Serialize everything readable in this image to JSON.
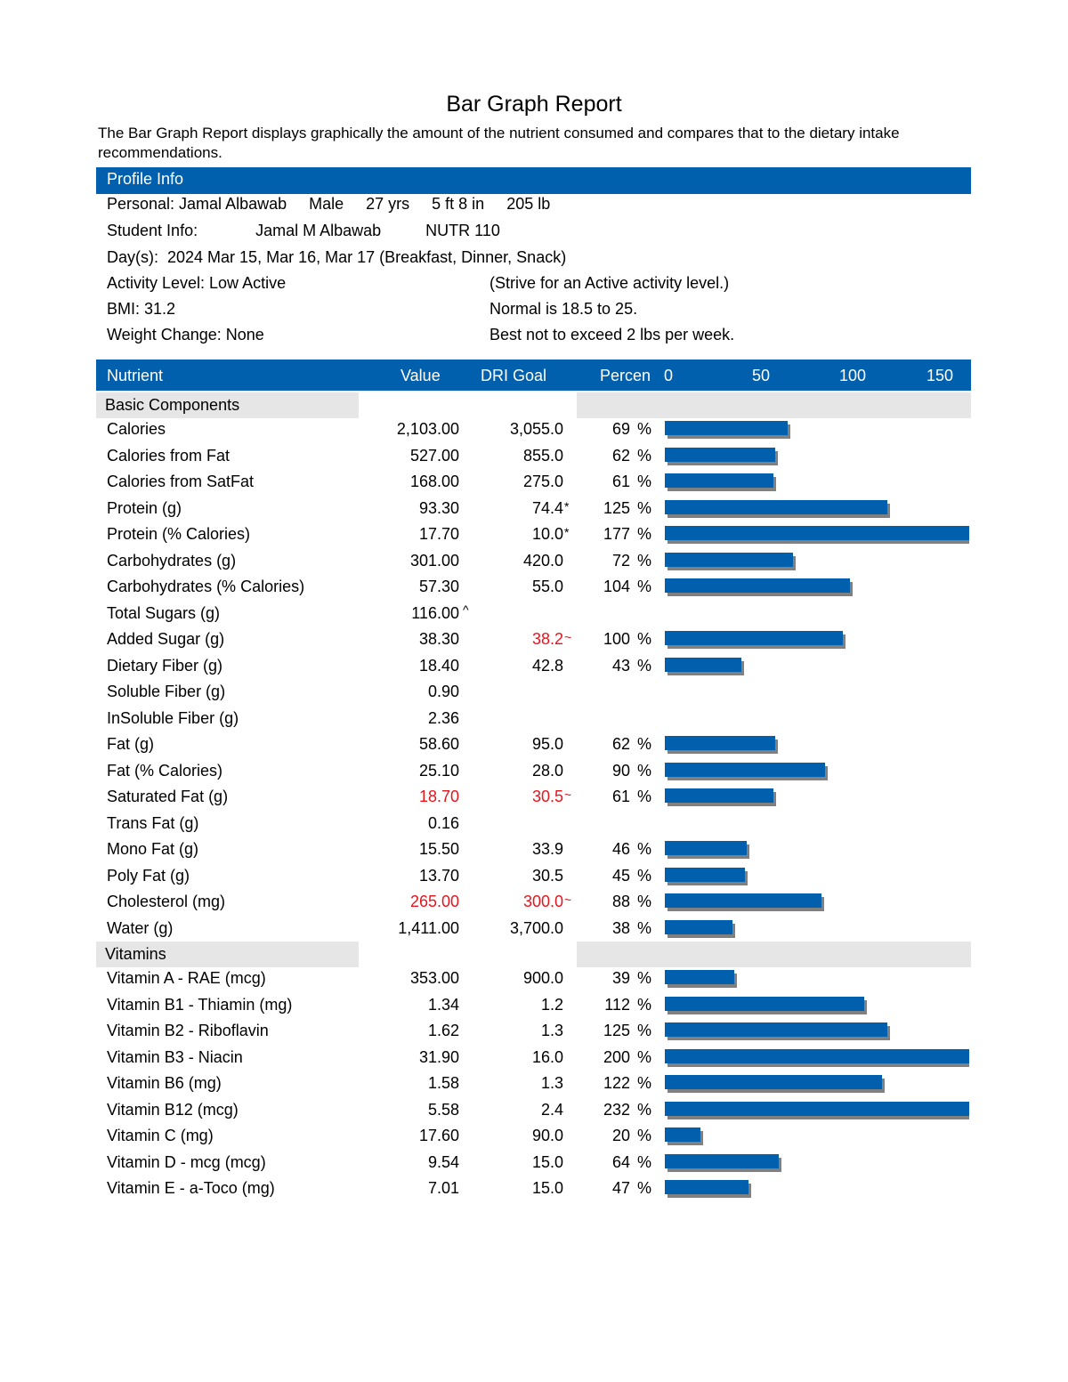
{
  "title": "Bar Graph Report",
  "description": "The Bar Graph Report displays graphically the amount of the nutrient consumed and compares that to the dietary intake recommendations.",
  "profile": {
    "header": "Profile Info",
    "personal": "Personal: Jamal Albawab     Male     27 yrs     5 ft 8 in     205 lb",
    "student": "Student Info:             Jamal M Albawab          NUTR 110",
    "days": "Day(s):  2024 Mar 15, Mar 16, Mar 17 (Breakfast, Dinner, Snack)",
    "activity": "Activity Level: Low Active",
    "activity_note": "(Strive for an Active activity level.)",
    "bmi": "BMI: 31.2",
    "bmi_note": "Normal is 18.5 to 25.",
    "weight": "Weight Change: None",
    "weight_note": "Best not to exceed 2 lbs per week."
  },
  "table_header": {
    "nutrient": "Nutrient",
    "value": "Value",
    "goal": "DRI Goal",
    "percent": "Percen",
    "ticks": [
      "0",
      "50",
      "100",
      "150"
    ]
  },
  "chart_data": {
    "type": "bar",
    "axis_ticks": [
      0,
      50,
      100,
      150
    ],
    "xlim": [
      0,
      170
    ],
    "colors": {
      "bar": "#0060AD",
      "shadow": "#808080",
      "flag": "#e8141b",
      "header": "#0060AD"
    },
    "groups": [
      {
        "name": "Basic Components",
        "rows": [
          {
            "name": "Calories",
            "value": "2,103.00",
            "goal": "3,055.0",
            "pct": "69",
            "pct_num": 69
          },
          {
            "name": "Calories from Fat",
            "value": "527.00",
            "goal": "855.0",
            "pct": "62",
            "pct_num": 62
          },
          {
            "name": "Calories from SatFat",
            "value": "168.00",
            "goal": "275.0",
            "pct": "61",
            "pct_num": 61
          },
          {
            "name": "Protein (g)",
            "value": "93.30",
            "goal": "74.4",
            "goal_flag": "*",
            "pct": "125",
            "pct_num": 125
          },
          {
            "name": "Protein (% Calories)",
            "value": "17.70",
            "goal": "10.0",
            "goal_flag": "*",
            "pct": "177",
            "pct_num": 177
          },
          {
            "name": "Carbohydrates (g)",
            "value": "301.00",
            "goal": "420.0",
            "pct": "72",
            "pct_num": 72
          },
          {
            "name": "Carbohydrates (% Calories)",
            "value": "57.30",
            "goal": "55.0",
            "pct": "104",
            "pct_num": 104
          },
          {
            "name": "Total Sugars (g)",
            "value": "116.00",
            "value_flag": "^",
            "goal": "",
            "pct": ""
          },
          {
            "name": "Added Sugar (g)",
            "value": "38.30",
            "goal": "38.2",
            "goal_flag": "~",
            "goal_red": true,
            "pct": "100",
            "pct_num": 100
          },
          {
            "name": "Dietary Fiber (g)",
            "value": "18.40",
            "goal": "42.8",
            "pct": "43",
            "pct_num": 43
          },
          {
            "name": "Soluble Fiber (g)",
            "value": "0.90",
            "goal": "",
            "pct": ""
          },
          {
            "name": "InSoluble Fiber (g)",
            "value": "2.36",
            "goal": "",
            "pct": ""
          },
          {
            "name": "Fat (g)",
            "value": "58.60",
            "goal": "95.0",
            "pct": "62",
            "pct_num": 62
          },
          {
            "name": "Fat (% Calories)",
            "value": "25.10",
            "goal": "28.0",
            "pct": "90",
            "pct_num": 90
          },
          {
            "name": "Saturated Fat (g)",
            "value": "18.70",
            "value_red": true,
            "goal": "30.5",
            "goal_flag": "~",
            "goal_red": true,
            "pct": "61",
            "pct_num": 61
          },
          {
            "name": "Trans Fat (g)",
            "value": "0.16",
            "goal": "",
            "pct": ""
          },
          {
            "name": "Mono Fat (g)",
            "value": "15.50",
            "goal": "33.9",
            "pct": "46",
            "pct_num": 46
          },
          {
            "name": "Poly Fat (g)",
            "value": "13.70",
            "goal": "30.5",
            "pct": "45",
            "pct_num": 45
          },
          {
            "name": "Cholesterol (mg)",
            "value": "265.00",
            "value_red": true,
            "goal": "300.0",
            "goal_flag": "~",
            "goal_red": true,
            "pct": "88",
            "pct_num": 88
          },
          {
            "name": "Water (g)",
            "value": "1,411.00",
            "goal": "3,700.0",
            "pct": "38",
            "pct_num": 38
          }
        ]
      },
      {
        "name": "Vitamins",
        "rows": [
          {
            "name": "Vitamin A - RAE (mcg)",
            "value": "353.00",
            "goal": "900.0",
            "pct": "39",
            "pct_num": 39
          },
          {
            "name": "Vitamin B1 - Thiamin (mg)",
            "value": "1.34",
            "goal": "1.2",
            "pct": "112",
            "pct_num": 112
          },
          {
            "name": "Vitamin B2 - Riboflavin",
            "value": "1.62",
            "goal": "1.3",
            "pct": "125",
            "pct_num": 125
          },
          {
            "name": "Vitamin B3 - Niacin",
            "value": "31.90",
            "goal": "16.0",
            "pct": "200",
            "pct_num": 200
          },
          {
            "name": "Vitamin B6 (mg)",
            "value": "1.58",
            "goal": "1.3",
            "pct": "122",
            "pct_num": 122
          },
          {
            "name": "Vitamin B12 (mcg)",
            "value": "5.58",
            "goal": "2.4",
            "pct": "232",
            "pct_num": 232
          },
          {
            "name": "Vitamin C (mg)",
            "value": "17.60",
            "goal": "90.0",
            "pct": "20",
            "pct_num": 20
          },
          {
            "name": "Vitamin D - mcg (mcg)",
            "value": "9.54",
            "goal": "15.0",
            "pct": "64",
            "pct_num": 64
          },
          {
            "name": "Vitamin E - a-Toco (mg)",
            "value": "7.01",
            "goal": "15.0",
            "pct": "47",
            "pct_num": 47
          }
        ]
      }
    ]
  }
}
